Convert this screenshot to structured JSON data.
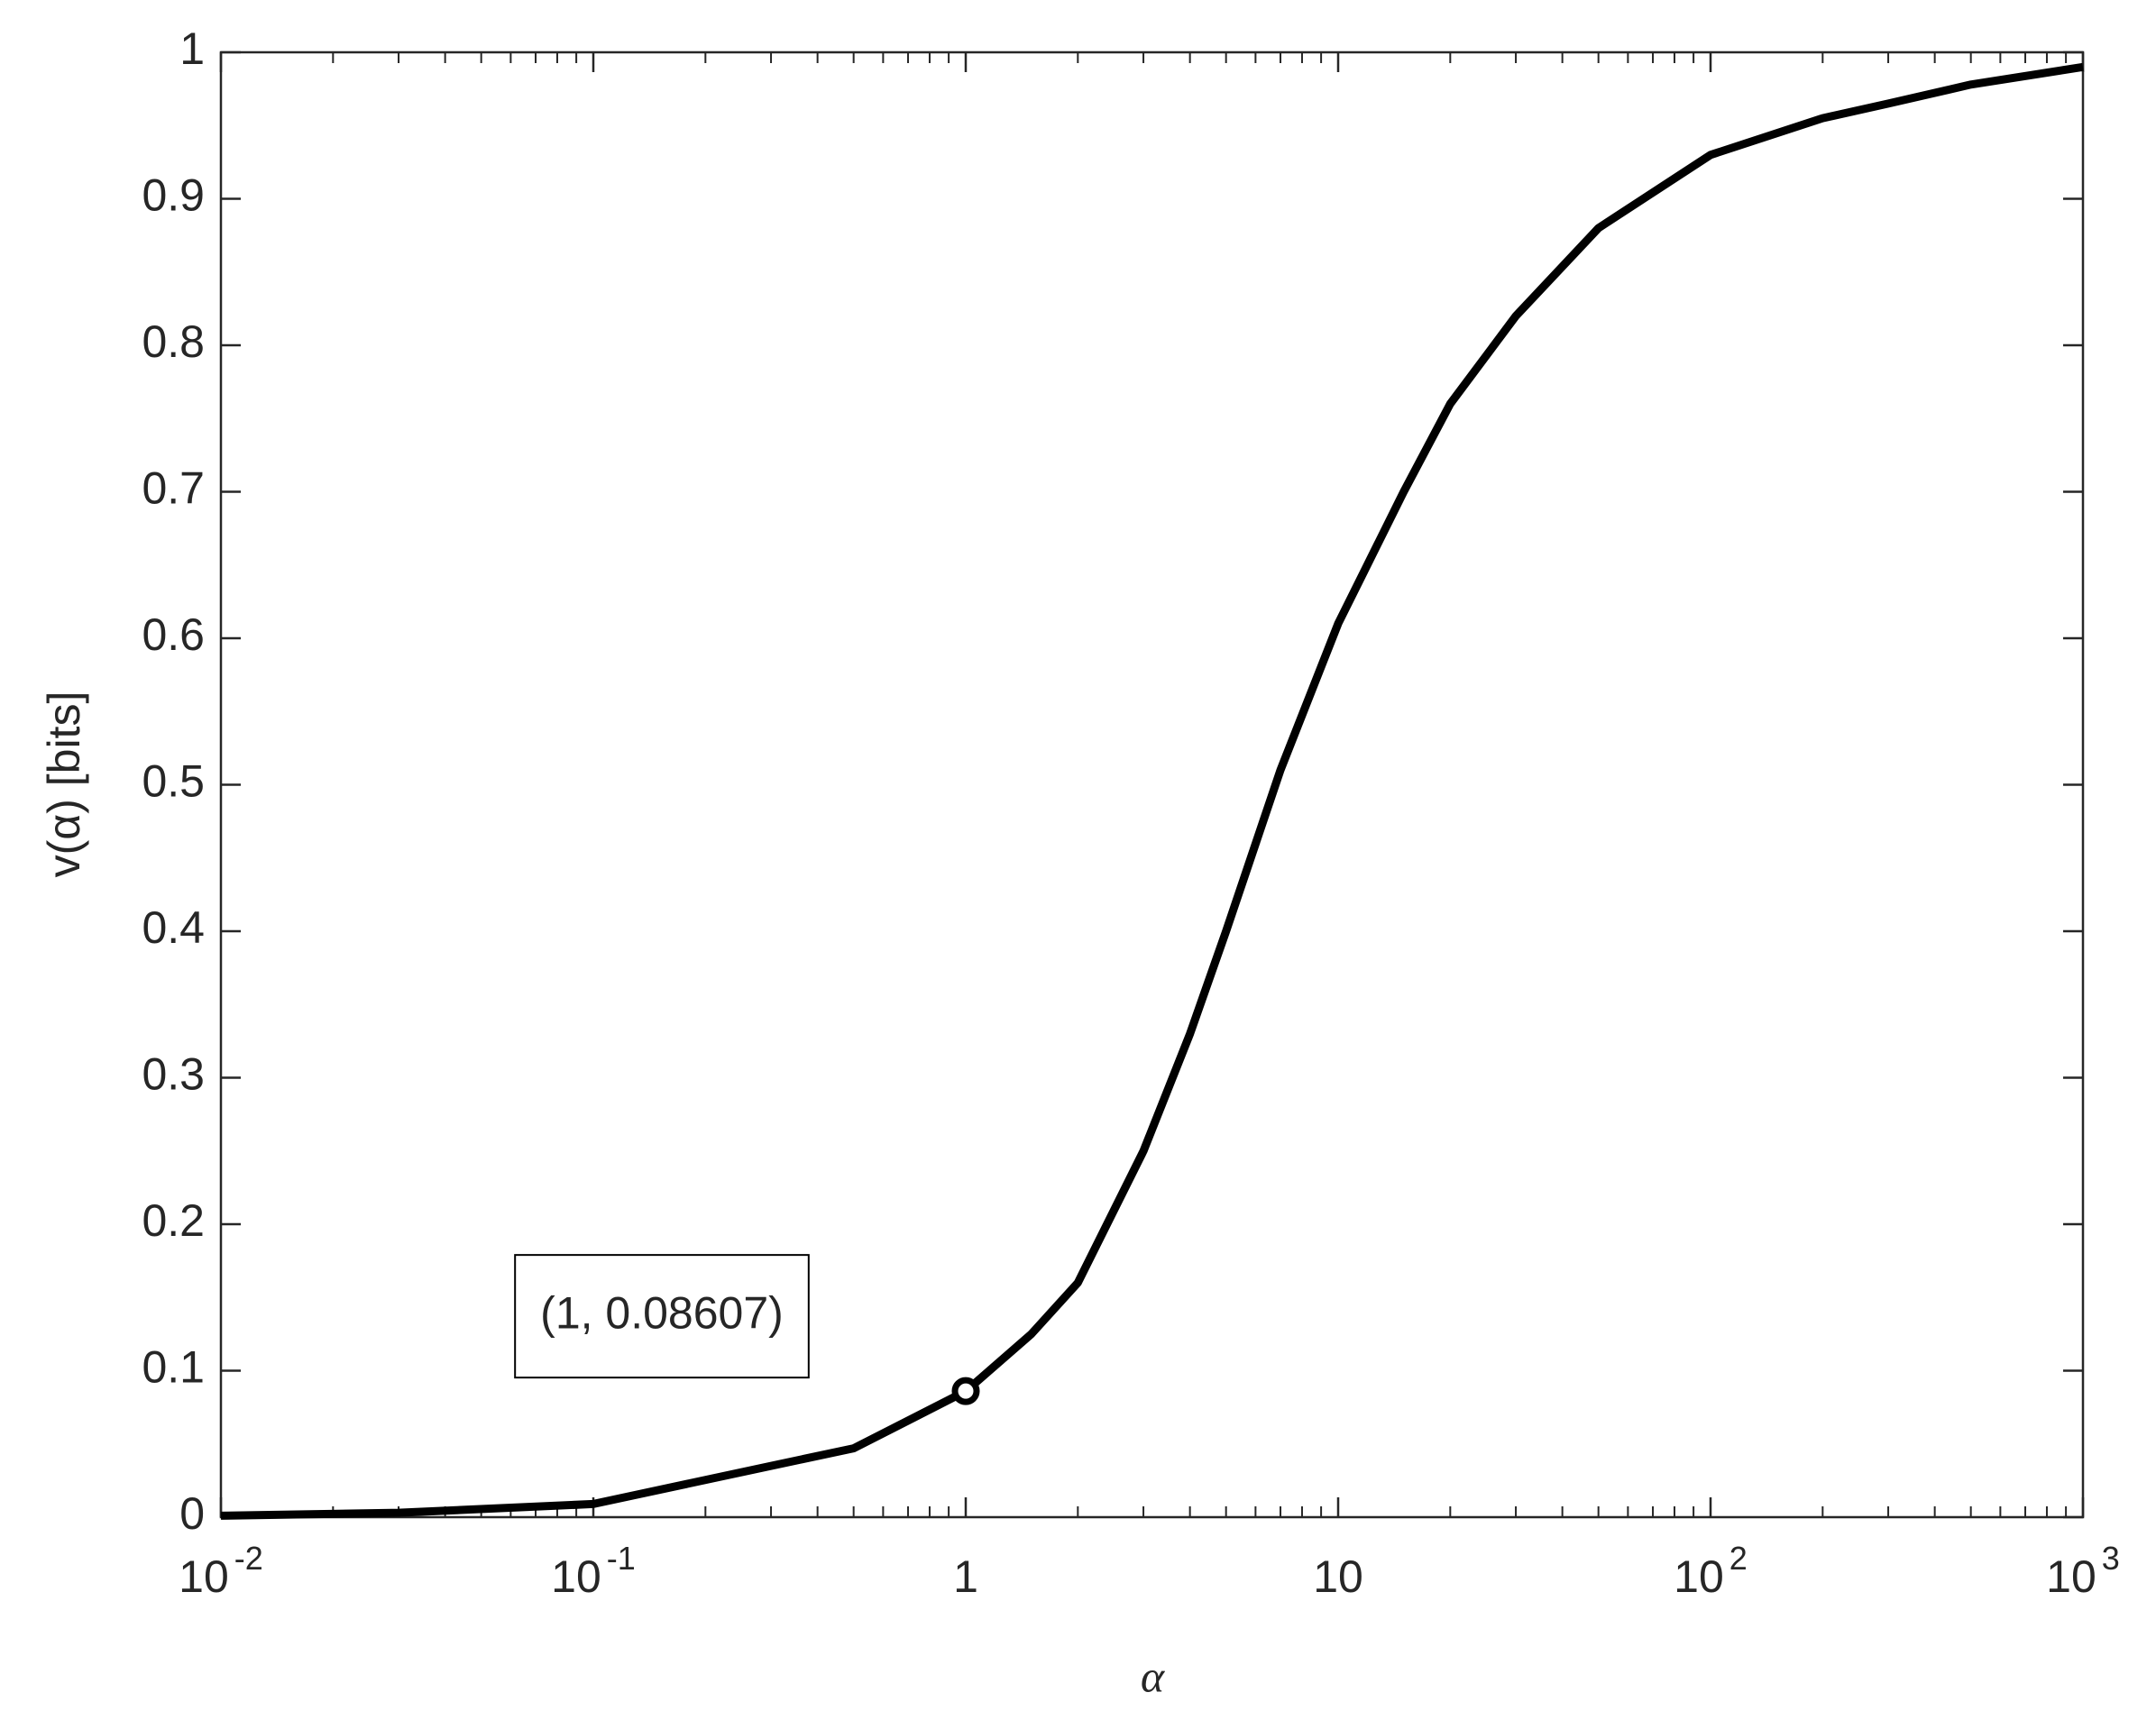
{
  "chart_data": {
    "type": "line",
    "x_label": "α",
    "y_label": "v(α)  [bits]",
    "x_scale": "log",
    "xlim": [
      0.01,
      1000
    ],
    "ylim": [
      0,
      1
    ],
    "xticks": [
      {
        "value": 0.01,
        "label": "10",
        "exponent": "-2"
      },
      {
        "value": 0.1,
        "label": "10",
        "exponent": "-1"
      },
      1,
      10,
      {
        "value": 100,
        "label": "10",
        "exponent": "2"
      },
      {
        "value": 1000,
        "label": "10",
        "exponent": "3"
      }
    ],
    "yticks": [
      0,
      0.1,
      0.2,
      0.3,
      0.4,
      0.5,
      0.6,
      0.7,
      0.8,
      0.9,
      1
    ],
    "grid": false,
    "x": [
      0.01,
      0.03,
      0.1,
      0.3,
      0.5,
      1,
      1.5,
      2,
      3,
      4,
      5,
      7,
      10,
      15,
      20,
      30,
      50,
      100,
      200,
      300,
      500,
      1000
    ],
    "series": [
      {
        "color": "#000000",
        "values": [
          0.001,
          0.003,
          0.009,
          0.035,
          0.047,
          0.086,
          0.125,
          0.16,
          0.25,
          0.33,
          0.4,
          0.51,
          0.61,
          0.7,
          0.76,
          0.82,
          0.88,
          0.93,
          0.955,
          0.965,
          0.978,
          0.99
        ]
      }
    ],
    "annotations": [
      {
        "text": "(1, 0.08607)",
        "x": 1,
        "y": 0.08607
      }
    ]
  }
}
